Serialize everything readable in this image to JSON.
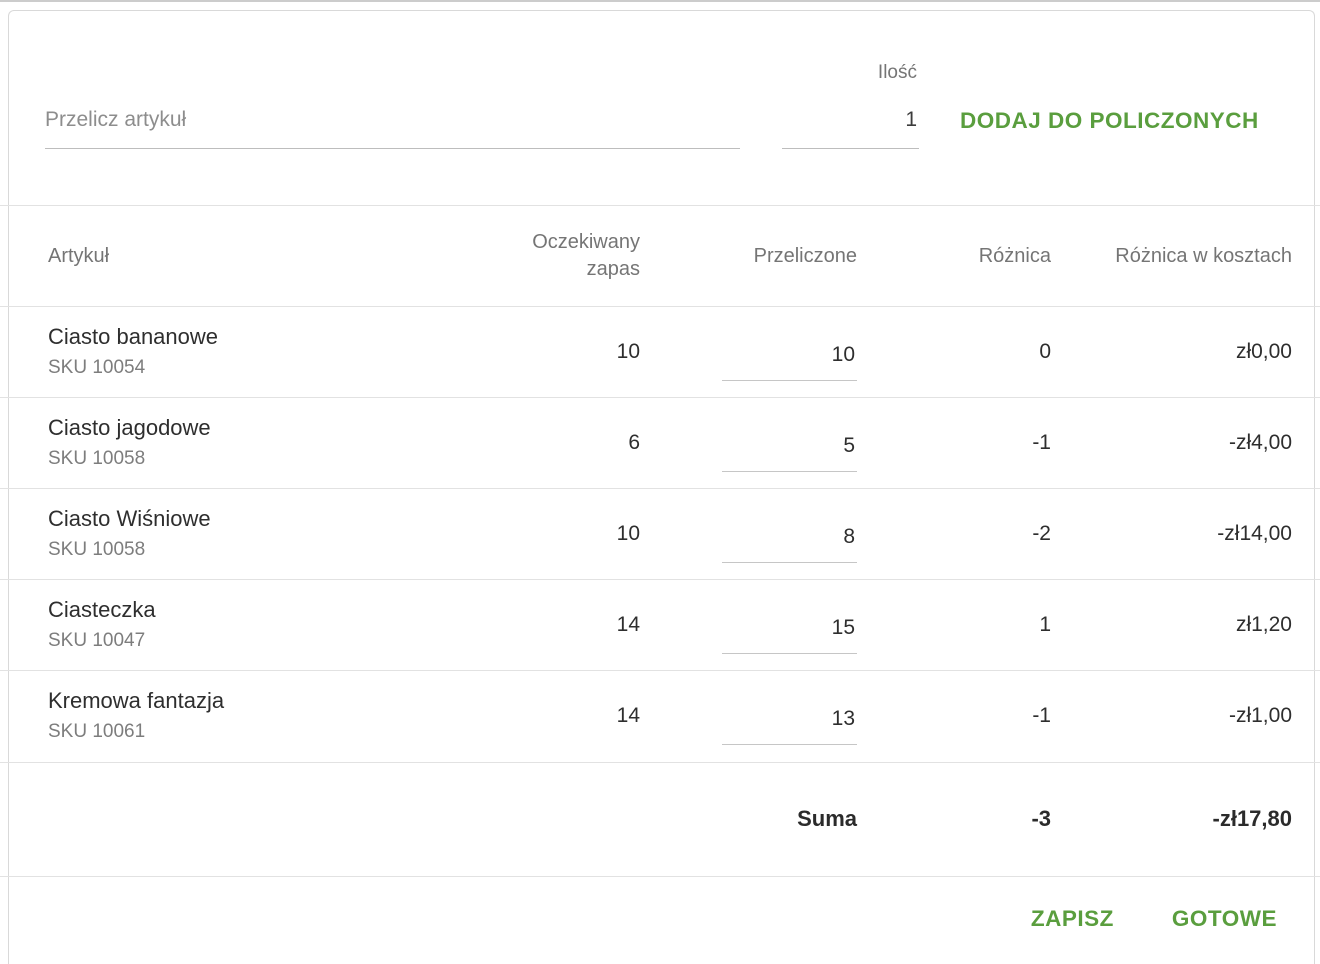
{
  "colors": {
    "accent_green": "#5a9e3e",
    "text_dark": "#2e2e2e",
    "text_gray": "#757575"
  },
  "form": {
    "article_input": {
      "placeholder": "Przelicz artykuł",
      "value": ""
    },
    "quantity": {
      "label": "Ilość",
      "value": "1"
    },
    "add_button_label": "DODAJ DO POLICZONYCH"
  },
  "table": {
    "headers": {
      "article": "Artykuł",
      "expected": "Oczekiwany zapas",
      "counted": "Przeliczone",
      "difference": "Różnica",
      "cost_difference": "Różnica w kosztach"
    },
    "rows": [
      {
        "name": "Ciasto bananowe",
        "sku": "SKU 10054",
        "expected": "10",
        "counted": "10",
        "difference": "0",
        "cost_difference": "zł0,00"
      },
      {
        "name": "Ciasto jagodowe",
        "sku": "SKU 10058",
        "expected": "6",
        "counted": "5",
        "difference": "-1",
        "cost_difference": "-zł4,00"
      },
      {
        "name": "Ciasto Wiśniowe",
        "sku": "SKU 10058",
        "expected": "10",
        "counted": "8",
        "difference": "-2",
        "cost_difference": "-zł14,00"
      },
      {
        "name": "Ciasteczka",
        "sku": "SKU 10047",
        "expected": "14",
        "counted": "15",
        "difference": "1",
        "cost_difference": "zł1,20"
      },
      {
        "name": "Kremowa fantazja",
        "sku": "SKU 10061",
        "expected": "14",
        "counted": "13",
        "difference": "-1",
        "cost_difference": "-zł1,00"
      }
    ],
    "summary": {
      "label": "Suma",
      "difference": "-3",
      "cost_difference": "-zł17,80"
    }
  },
  "footer": {
    "save_button_label": "ZAPISZ",
    "done_button_label": "GOTOWE"
  }
}
